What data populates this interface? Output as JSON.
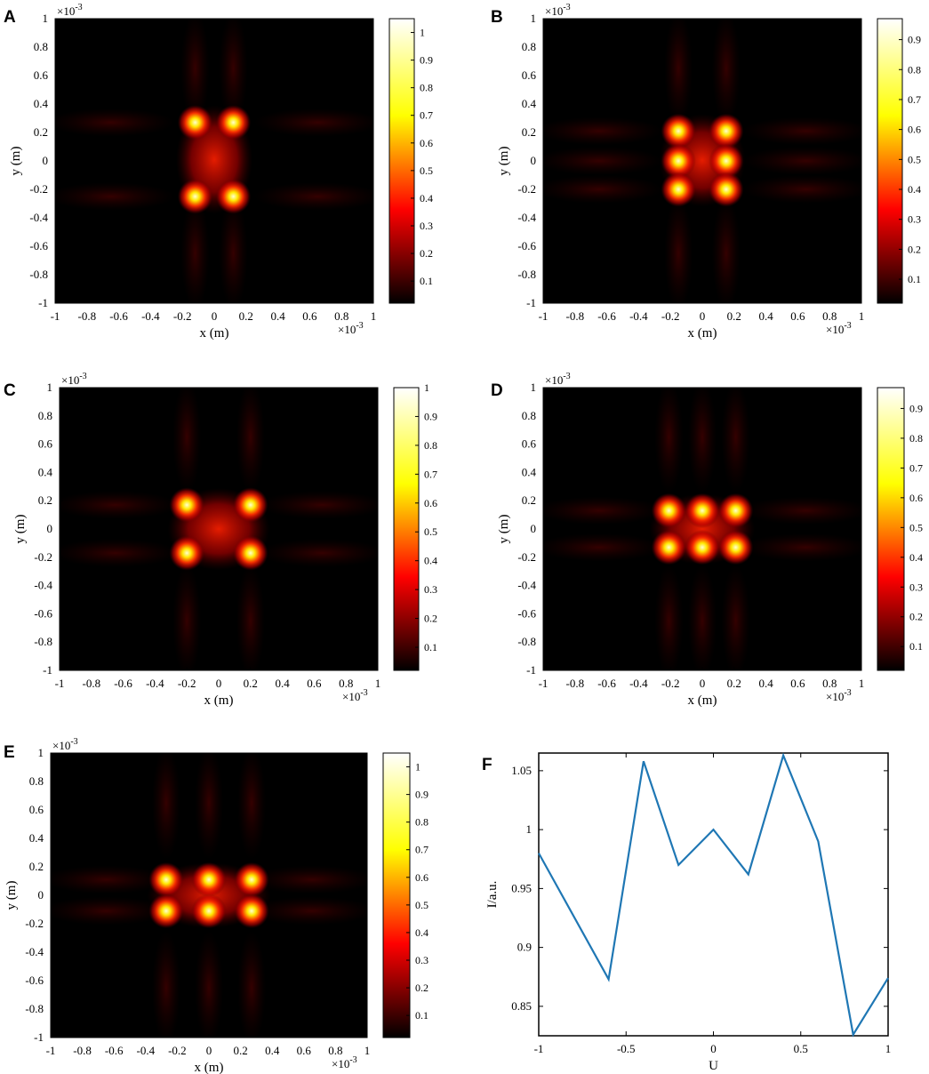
{
  "figure": {
    "panels": [
      {
        "letter": "A",
        "xlabel": "x (m)",
        "ylabel": "y (m)",
        "exponent": "×10",
        "exponent_power": "-3",
        "x_exponent": "×10",
        "x_exponent_power": "-3"
      },
      {
        "letter": "B",
        "xlabel": "x (m)",
        "ylabel": "y (m)",
        "exponent": "×10",
        "exponent_power": "-3",
        "x_exponent": "×10",
        "x_exponent_power": "-3"
      },
      {
        "letter": "C",
        "xlabel": "x (m)",
        "ylabel": "y (m)",
        "exponent": "×10",
        "exponent_power": "-3",
        "x_exponent": "×10",
        "x_exponent_power": "-3"
      },
      {
        "letter": "D",
        "xlabel": "x (m)",
        "ylabel": "y (m)",
        "exponent": "×10",
        "exponent_power": "-3",
        "x_exponent": "×10",
        "x_exponent_power": "-3"
      },
      {
        "letter": "E",
        "xlabel": "x (m)",
        "ylabel": "y (m)",
        "exponent": "×10",
        "exponent_power": "-3",
        "x_exponent": "×10",
        "x_exponent_power": "-3"
      },
      {
        "letter": "F",
        "xlabel": "U",
        "ylabel": "I/a.u."
      }
    ]
  },
  "chart_data": [
    {
      "type": "heatmap",
      "panel": "A",
      "xlim": [
        -1,
        1
      ],
      "ylim": [
        -1,
        1
      ],
      "x_ticks": [
        "-1",
        "-0.8",
        "-0.6",
        "-0.4",
        "-0.2",
        "0",
        "0.2",
        "0.4",
        "0.6",
        "0.8",
        "1"
      ],
      "y_ticks": [
        "1",
        "0.8",
        "0.6",
        "0.4",
        "0.2",
        "0",
        "-0.2",
        "-0.4",
        "-0.6",
        "-0.8",
        "-1"
      ],
      "colorbar_ticks": [
        "1",
        "0.9",
        "0.8",
        "0.7",
        "0.6",
        "0.5",
        "0.4",
        "0.3",
        "0.2",
        "0.1"
      ],
      "colorbar_range": [
        0.02,
        1.05
      ],
      "colormap": "hot",
      "peaks": [
        [
          -0.12,
          0.27
        ],
        [
          0.12,
          0.27
        ],
        [
          -0.12,
          -0.25
        ],
        [
          0.12,
          -0.25
        ]
      ]
    },
    {
      "type": "heatmap",
      "panel": "B",
      "xlim": [
        -1,
        1
      ],
      "ylim": [
        -1,
        1
      ],
      "x_ticks": [
        "-1",
        "-0.8",
        "-0.6",
        "-0.4",
        "-0.2",
        "0",
        "0.2",
        "0.4",
        "0.6",
        "0.8",
        "1"
      ],
      "y_ticks": [
        "1",
        "0.8",
        "0.6",
        "0.4",
        "0.2",
        "0",
        "-0.2",
        "-0.4",
        "-0.6",
        "-0.8",
        "-1"
      ],
      "colorbar_ticks": [
        "0.9",
        "0.8",
        "0.7",
        "0.6",
        "0.5",
        "0.4",
        "0.3",
        "0.2",
        "0.1"
      ],
      "colorbar_range": [
        0.02,
        0.97
      ],
      "colormap": "hot",
      "peaks": [
        [
          -0.15,
          0.21
        ],
        [
          0.15,
          0.21
        ],
        [
          -0.15,
          0
        ],
        [
          0.15,
          0
        ],
        [
          -0.15,
          -0.2
        ],
        [
          0.15,
          -0.2
        ]
      ]
    },
    {
      "type": "heatmap",
      "panel": "C",
      "xlim": [
        -1,
        1
      ],
      "ylim": [
        -1,
        1
      ],
      "x_ticks": [
        "-1",
        "-0.8",
        "-0.6",
        "-0.4",
        "-0.2",
        "0",
        "0.2",
        "0.4",
        "0.6",
        "0.8",
        "1"
      ],
      "y_ticks": [
        "1",
        "0.8",
        "0.6",
        "0.4",
        "0.2",
        "0",
        "-0.2",
        "-0.4",
        "-0.6",
        "-0.8",
        "-1"
      ],
      "colorbar_ticks": [
        "1",
        "0.9",
        "0.8",
        "0.7",
        "0.6",
        "0.5",
        "0.4",
        "0.3",
        "0.2",
        "0.1"
      ],
      "colorbar_range": [
        0.02,
        1.0
      ],
      "colormap": "hot",
      "peaks": [
        [
          -0.2,
          0.17
        ],
        [
          0.2,
          0.17
        ],
        [
          -0.2,
          -0.17
        ],
        [
          0.2,
          -0.17
        ]
      ]
    },
    {
      "type": "heatmap",
      "panel": "D",
      "xlim": [
        -1,
        1
      ],
      "ylim": [
        -1,
        1
      ],
      "x_ticks": [
        "-1",
        "-0.8",
        "-0.6",
        "-0.4",
        "-0.2",
        "0",
        "0.2",
        "0.4",
        "0.6",
        "0.8",
        "1"
      ],
      "y_ticks": [
        "1",
        "0.8",
        "0.6",
        "0.4",
        "0.2",
        "0",
        "-0.2",
        "-0.4",
        "-0.6",
        "-0.8",
        "-1"
      ],
      "colorbar_ticks": [
        "0.9",
        "0.8",
        "0.7",
        "0.6",
        "0.5",
        "0.4",
        "0.3",
        "0.2",
        "0.1"
      ],
      "colorbar_range": [
        0.02,
        0.97
      ],
      "colormap": "hot",
      "peaks": [
        [
          -0.21,
          0.13
        ],
        [
          0,
          0.13
        ],
        [
          0.21,
          0.13
        ],
        [
          -0.21,
          -0.13
        ],
        [
          0,
          -0.13
        ],
        [
          0.21,
          -0.13
        ]
      ]
    },
    {
      "type": "heatmap",
      "panel": "E",
      "xlim": [
        -1,
        1
      ],
      "ylim": [
        -1,
        1
      ],
      "x_ticks": [
        "-1",
        "-0.8",
        "-0.6",
        "-0.4",
        "-0.2",
        "0",
        "0.2",
        "0.4",
        "0.6",
        "0.8",
        "1"
      ],
      "y_ticks": [
        "1",
        "0.8",
        "0.6",
        "0.4",
        "0.2",
        "0",
        "-0.2",
        "-0.4",
        "-0.6",
        "-0.8",
        "-1"
      ],
      "colorbar_ticks": [
        "1",
        "0.9",
        "0.8",
        "0.7",
        "0.6",
        "0.5",
        "0.4",
        "0.3",
        "0.2",
        "0.1"
      ],
      "colorbar_range": [
        0.02,
        1.05
      ],
      "colormap": "hot",
      "peaks": [
        [
          -0.27,
          0.11
        ],
        [
          0,
          0.11
        ],
        [
          0.27,
          0.11
        ],
        [
          -0.27,
          -0.11
        ],
        [
          0,
          -0.11
        ],
        [
          0.27,
          -0.11
        ]
      ]
    },
    {
      "type": "line",
      "panel": "F",
      "xlabel": "U",
      "ylabel": "I/a.u.",
      "xlim": [
        -1,
        1
      ],
      "ylim": [
        0.825,
        1.065
      ],
      "x_ticks": [
        -1,
        -0.5,
        0,
        0.5,
        1
      ],
      "x_tick_labels": [
        "-1",
        "-0.5",
        "0",
        "0.5",
        "1"
      ],
      "y_ticks": [
        0.85,
        0.9,
        0.95,
        1.0,
        1.05
      ],
      "y_tick_labels": [
        "0.85",
        "0.9",
        "0.95",
        "1",
        "1.05"
      ],
      "line_color": "#1f77b4",
      "x": [
        -1,
        -0.6,
        -0.4,
        -0.2,
        0,
        0.2,
        0.4,
        0.6,
        0.8,
        1
      ],
      "y": [
        0.98,
        0.873,
        1.058,
        0.97,
        1.0,
        0.962,
        1.063,
        0.99,
        0.826,
        0.874
      ]
    }
  ]
}
